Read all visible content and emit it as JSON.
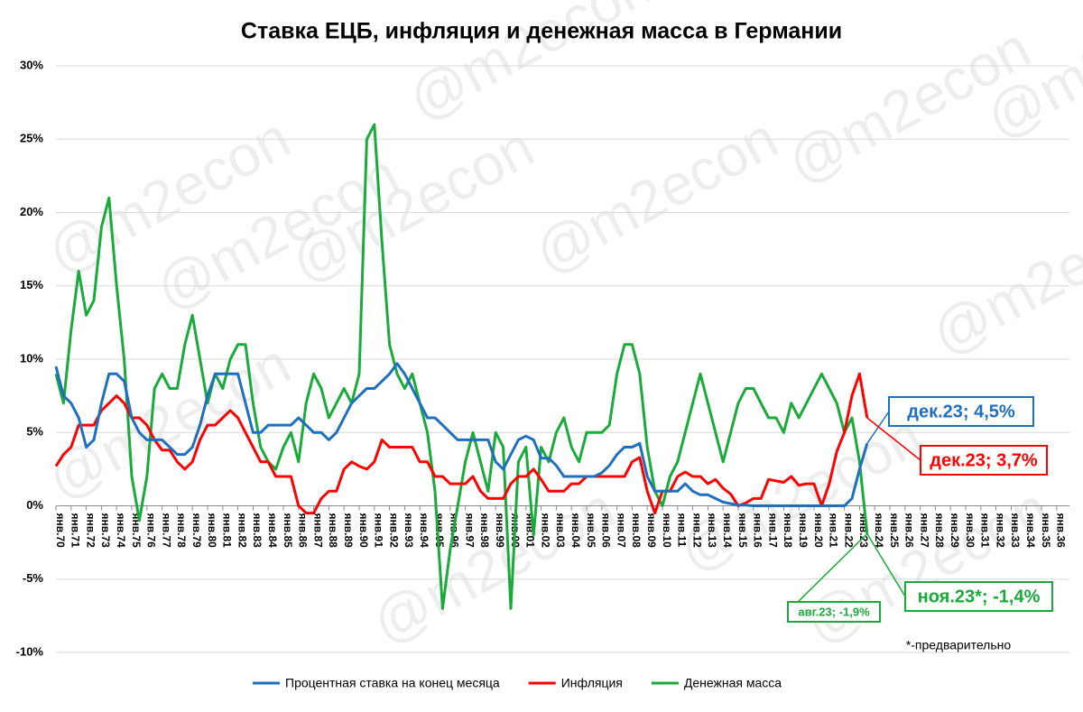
{
  "chart_data": {
    "type": "line",
    "title": "Ставка ЕЦБ, инфляция и денежная масса в Германии",
    "watermark": "@m2econ",
    "categories": [
      "янв.70",
      null,
      "янв.71",
      null,
      "янв.72",
      null,
      "янв.73",
      null,
      "янв.74",
      null,
      "янв.75",
      null,
      "янв.76",
      null,
      "янв.77",
      null,
      "янв.78",
      null,
      "янв.79",
      null,
      "янв.80",
      null,
      "янв.81",
      null,
      "янв.82",
      null,
      "янв.83",
      null,
      "янв.84",
      null,
      "янв.85",
      null,
      "янв.86",
      null,
      "янв.87",
      null,
      "янв.88",
      null,
      "янв.89",
      null,
      "янв.90",
      null,
      "янв.91",
      null,
      "янв.92",
      null,
      "янв.93",
      null,
      "янв.94",
      null,
      "янв.95",
      null,
      "янв.96",
      null,
      "янв.97",
      null,
      "янв.98",
      null,
      "янв.99",
      null,
      "янв.00",
      null,
      "янв.01",
      null,
      "янв.02",
      null,
      "янв.03",
      null,
      "янв.04",
      null,
      "янв.05",
      null,
      "янв.06",
      null,
      "янв.07",
      null,
      "янв.08",
      null,
      "янв.09",
      null,
      "янв.10",
      null,
      "янв.11",
      null,
      "янв.12",
      null,
      "янв.13",
      null,
      "янв.14",
      null,
      "янв.15",
      null,
      "янв.16",
      null,
      "янв.17",
      null,
      "янв.18",
      null,
      "янв.19",
      null,
      "янв.20",
      null,
      "янв.21",
      null,
      "янв.22",
      null,
      "янв.23",
      null,
      "янв.24",
      null,
      "янв.25",
      null,
      "янв.26",
      null,
      "янв.27",
      null,
      "янв.28",
      null,
      "янв.29",
      null,
      "янв.30",
      null,
      "янв.31",
      null,
      "янв.32",
      null,
      "янв.33",
      null,
      "янв.34",
      null,
      "янв.35",
      null,
      "янв.36"
    ],
    "series": [
      {
        "name": "Процентная ставка на конец месяца",
        "color": "#1f6fbf",
        "values": [
          9.5,
          7.5,
          7,
          6,
          4,
          4.5,
          7,
          9,
          9,
          8.5,
          6,
          5,
          4.5,
          4.5,
          4.5,
          4,
          3.5,
          3.5,
          4,
          5.5,
          7.5,
          9,
          9,
          9,
          9,
          7,
          5,
          5,
          5.5,
          5.5,
          5.5,
          5.5,
          6,
          5.5,
          5,
          5,
          4.5,
          5,
          6,
          7,
          7.5,
          8,
          8,
          8.5,
          9,
          9.7,
          9,
          8,
          7,
          6,
          6,
          5.5,
          5,
          4.5,
          4.5,
          4.5,
          4.5,
          4.5,
          3,
          2.5,
          3.5,
          4.5,
          4.75,
          4.5,
          3.25,
          3.25,
          2.75,
          2,
          2,
          2,
          2,
          2,
          2.25,
          2.75,
          3.5,
          4,
          4,
          4.25,
          2,
          1,
          1,
          1,
          1,
          1.5,
          1,
          0.75,
          0.75,
          0.5,
          0.25,
          0.15,
          0.05,
          0.05,
          0,
          0,
          0,
          0,
          0,
          0,
          0,
          0,
          0,
          0,
          0,
          0,
          0,
          0.5,
          2.5,
          4.25,
          null,
          null,
          null,
          null,
          null,
          null,
          null,
          null,
          null,
          null,
          null,
          null,
          null,
          null,
          null,
          null,
          null,
          null,
          null,
          null,
          null,
          null,
          null,
          null,
          null
        ]
      },
      {
        "name": "Инфляция",
        "color": "#ff0000",
        "values": [
          2.7,
          3.5,
          4,
          5.5,
          5.5,
          5.5,
          6.5,
          7,
          7.5,
          7,
          6,
          6,
          5.5,
          4.5,
          3.8,
          3.8,
          3,
          2.5,
          3,
          4.5,
          5.5,
          5.5,
          6,
          6.5,
          6,
          5,
          4,
          3,
          3,
          2,
          2,
          2,
          0,
          -0.5,
          -0.5,
          0.5,
          1,
          1,
          2.5,
          3,
          2.7,
          2.5,
          3,
          4.5,
          4,
          4,
          4,
          4,
          3,
          3,
          2,
          2,
          1.5,
          1.5,
          1.5,
          2,
          1,
          0.5,
          0.5,
          0.5,
          1.5,
          2,
          2,
          2.5,
          1.8,
          1,
          1,
          1,
          1.5,
          1.5,
          2,
          2,
          2,
          2,
          2,
          2,
          3,
          3.3,
          1,
          -0.5,
          1,
          1,
          2,
          2.3,
          2,
          2,
          1.5,
          1.8,
          1.2,
          0.8,
          0,
          0.2,
          0.5,
          0.5,
          1.8,
          1.7,
          1.6,
          2,
          1.4,
          1.5,
          1.5,
          0,
          1.5,
          3.7,
          5,
          7.5,
          9,
          6,
          null,
          null,
          null,
          null,
          null,
          null,
          null,
          null,
          null,
          null,
          null,
          null,
          null,
          null,
          null,
          null,
          null,
          null,
          null,
          null,
          null,
          null,
          null,
          null,
          null
        ]
      },
      {
        "name": "Денежная масса",
        "color": "#1aaa3a",
        "values": [
          9,
          7,
          12,
          16,
          13,
          14,
          19,
          21,
          15,
          10,
          2,
          -1,
          2,
          8,
          9,
          8,
          8,
          11,
          13,
          10,
          7,
          9,
          8,
          10,
          11,
          11,
          7,
          4,
          3,
          2.5,
          4,
          5,
          3,
          7,
          9,
          8,
          6,
          7,
          8,
          7,
          9,
          25,
          26,
          18,
          11,
          9,
          8,
          9,
          7,
          5,
          1,
          -7,
          -3,
          0,
          3,
          5,
          3,
          1,
          5,
          4,
          -7,
          3,
          4,
          -2,
          4,
          3,
          5,
          6,
          4,
          3,
          5,
          5,
          5,
          5.5,
          9,
          11,
          11,
          9,
          4,
          1,
          0,
          2,
          3,
          5,
          7,
          9,
          7,
          5,
          3,
          5,
          7,
          8,
          8,
          7,
          6,
          6,
          5,
          7,
          6,
          7,
          8,
          9,
          8,
          7,
          5,
          6,
          3,
          -1.9,
          null,
          null,
          null,
          null,
          null,
          null,
          null,
          null,
          null,
          null,
          null,
          null,
          null,
          null,
          null,
          null,
          null,
          null,
          null,
          null,
          null,
          null,
          null,
          null,
          null
        ]
      }
    ],
    "ylim": [
      -10,
      30
    ],
    "yticks": [
      {
        "value": -10,
        "label": "-10%"
      },
      {
        "value": -5,
        "label": "-5%"
      },
      {
        "value": 0,
        "label": "0%"
      },
      {
        "value": 5,
        "label": "5%"
      },
      {
        "value": 10,
        "label": "10%"
      },
      {
        "value": 15,
        "label": "15%"
      },
      {
        "value": 20,
        "label": "20%"
      },
      {
        "value": 25,
        "label": "25%"
      },
      {
        "value": 30,
        "label": "30%"
      }
    ],
    "grid": true,
    "annotations": [
      {
        "text": "дек.23; 4,5%",
        "color": "#1f6fbf"
      },
      {
        "text": "дек.23; 3,7%",
        "color": "#ff0000"
      },
      {
        "text": "ноя.23*; -1,4%",
        "color": "#1aaa3a"
      },
      {
        "text": "авг.23; -1,9%",
        "color": "#1aaa3a"
      }
    ],
    "footnote": "*-предварительно"
  }
}
